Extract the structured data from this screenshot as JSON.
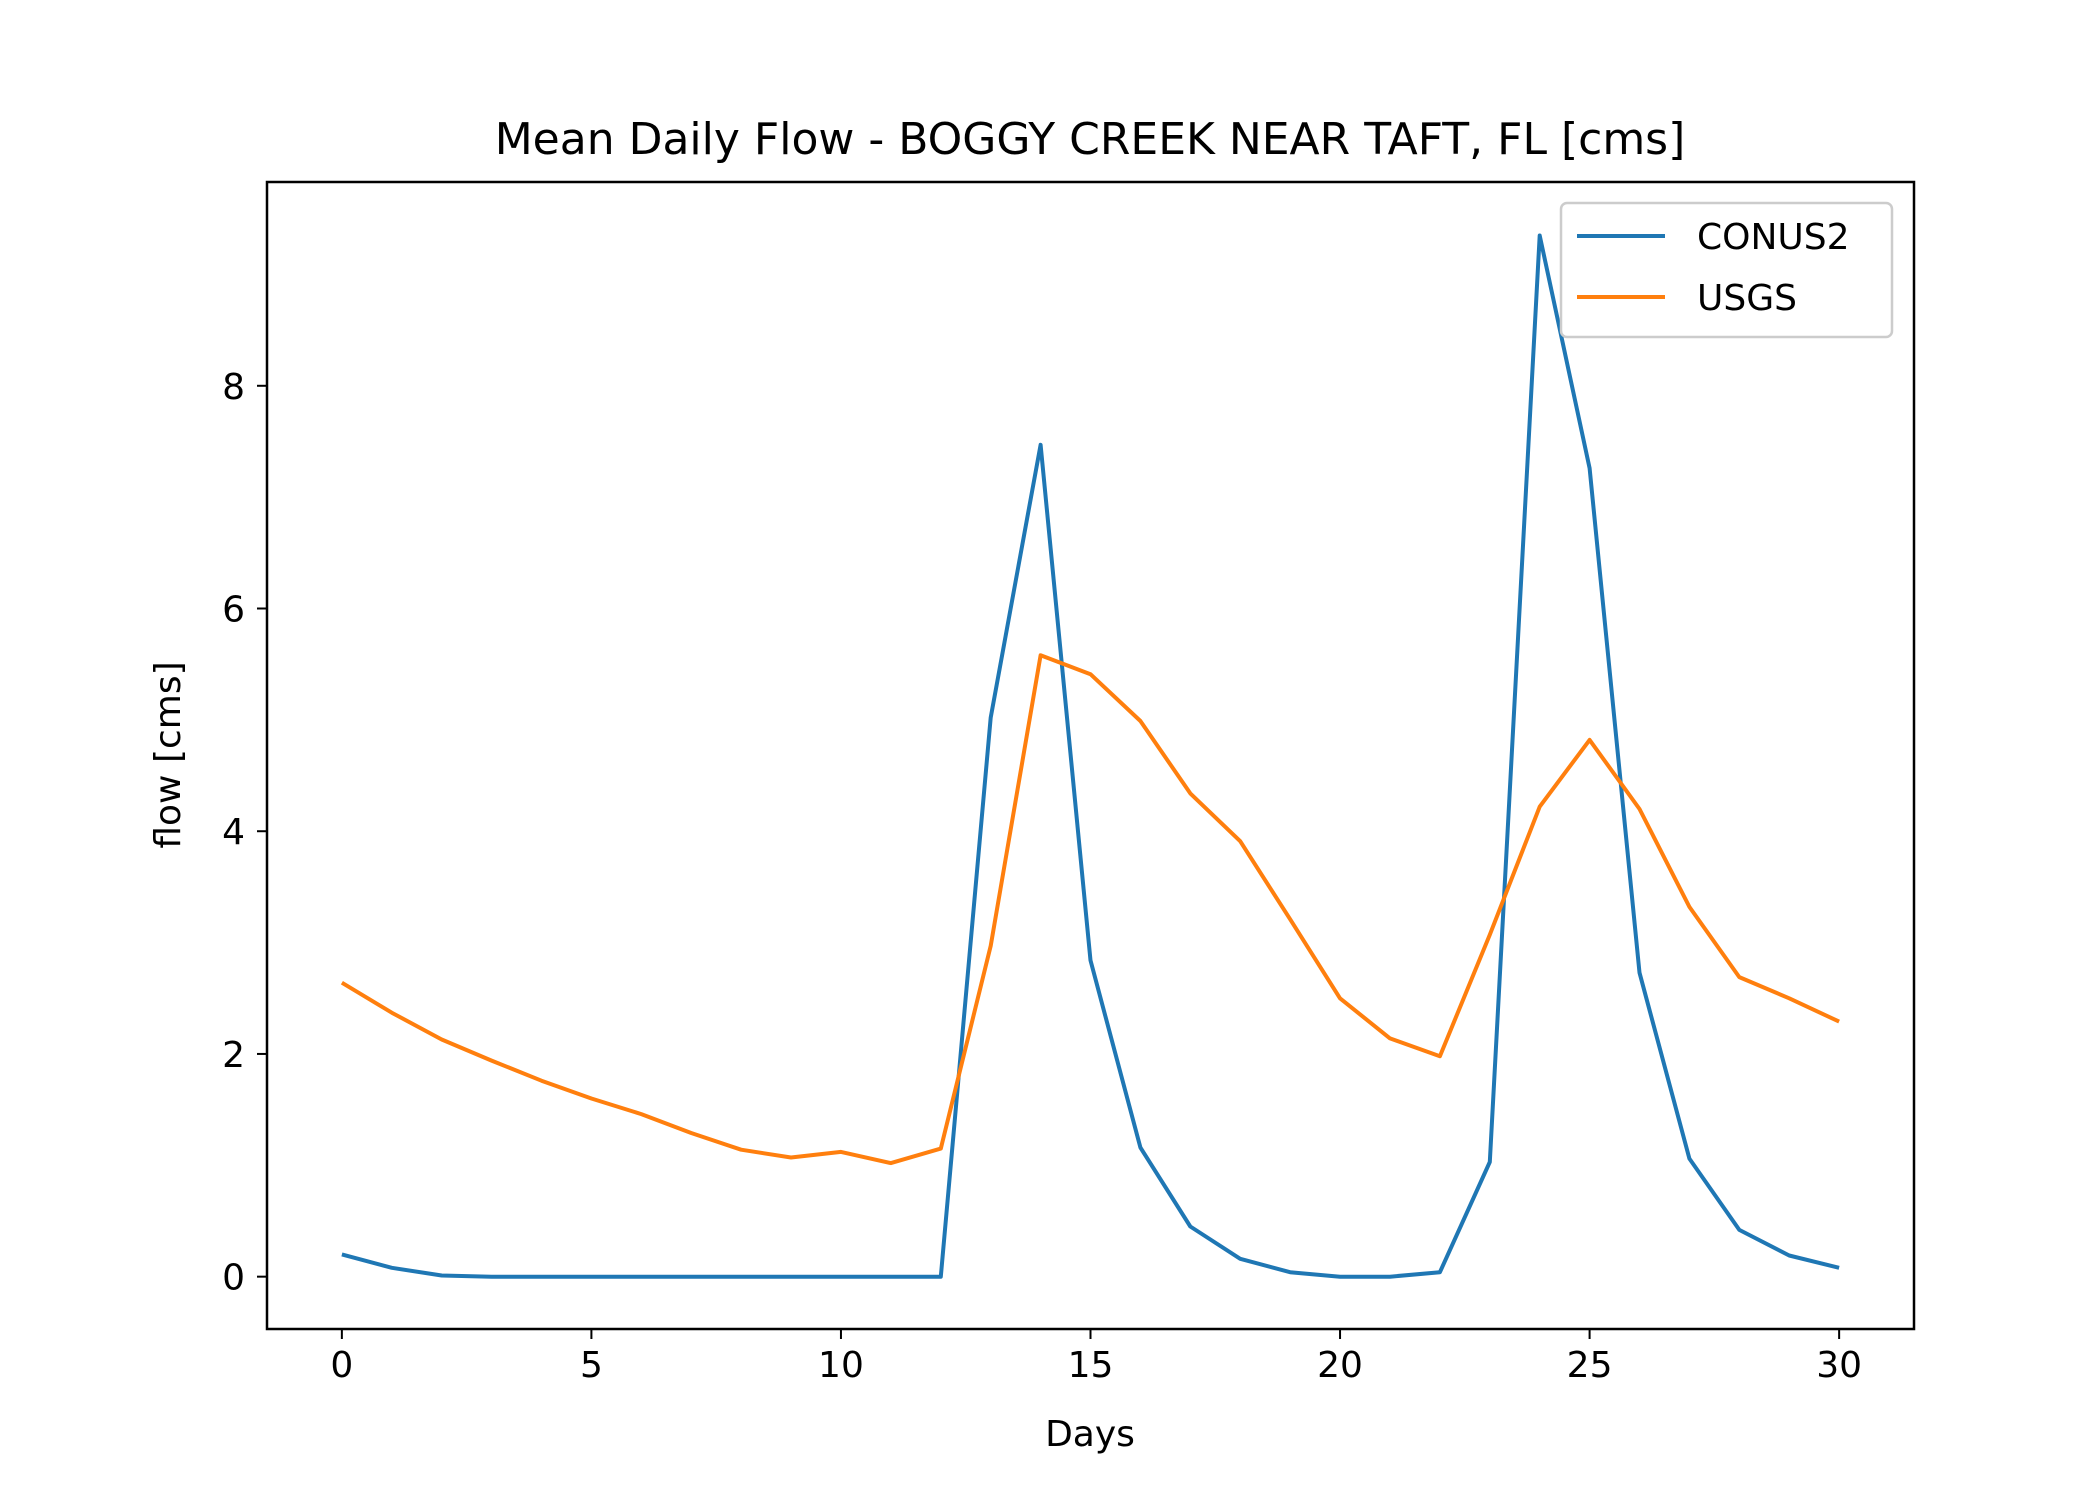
{
  "chart_data": {
    "type": "line",
    "title": "Mean Daily Flow - BOGGY CREEK NEAR TAFT, FL [cms]",
    "xlabel": "Days",
    "ylabel": "flow [cms]",
    "xlim": [
      -1.5,
      31.5
    ],
    "ylim": [
      -0.47,
      9.83
    ],
    "xticks": [
      0,
      5,
      10,
      15,
      20,
      25,
      30
    ],
    "yticks": [
      0,
      2,
      4,
      6,
      8
    ],
    "grid": false,
    "legend_position": "top-right",
    "x": [
      0,
      1,
      2,
      3,
      4,
      5,
      6,
      7,
      8,
      9,
      10,
      11,
      12,
      13,
      14,
      15,
      16,
      17,
      18,
      19,
      20,
      21,
      22,
      23,
      24,
      25,
      26,
      27,
      28,
      29,
      30
    ],
    "series": [
      {
        "name": "CONUS2",
        "color": "#1f77b4",
        "values": [
          0.2,
          0.08,
          0.01,
          0.0,
          0.0,
          0.0,
          0.0,
          0.0,
          0.0,
          0.0,
          0.0,
          0.0,
          0.0,
          5.02,
          7.47,
          2.84,
          1.16,
          0.45,
          0.16,
          0.04,
          0.0,
          0.0,
          0.04,
          1.03,
          9.35,
          7.26,
          2.73,
          1.06,
          0.42,
          0.19,
          0.08
        ]
      },
      {
        "name": "USGS",
        "color": "#ff7f0e",
        "values": [
          2.64,
          2.37,
          2.13,
          1.94,
          1.76,
          1.6,
          1.46,
          1.29,
          1.14,
          1.07,
          1.12,
          1.02,
          1.15,
          2.97,
          5.58,
          5.41,
          4.99,
          4.34,
          3.91,
          3.21,
          2.5,
          2.14,
          1.98,
          3.07,
          4.22,
          4.82,
          4.2,
          3.32,
          2.69,
          2.5,
          2.29
        ]
      }
    ]
  }
}
